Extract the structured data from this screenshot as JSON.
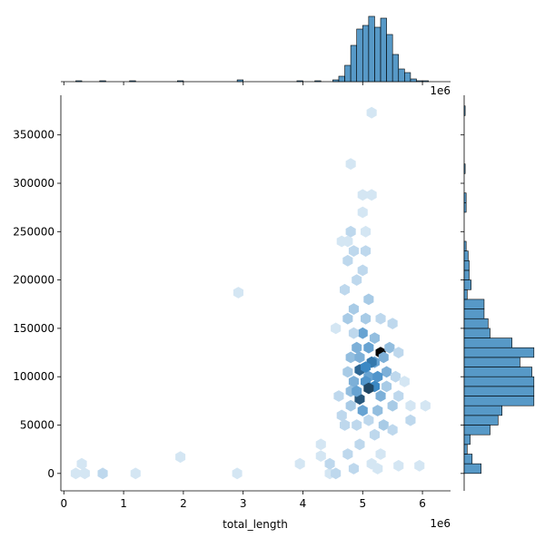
{
  "chart_data": {
    "type": "hexbin-joint",
    "x_label": "total_length",
    "x_offset_label": "1e6",
    "xlim": [
      -50000,
      6470000
    ],
    "ylim": [
      -18000,
      391000
    ],
    "xticks": [
      {
        "value": 0,
        "label": "0"
      },
      {
        "value": 1000000,
        "label": "1"
      },
      {
        "value": 2000000,
        "label": "2"
      },
      {
        "value": 3000000,
        "label": "3"
      },
      {
        "value": 4000000,
        "label": "4"
      },
      {
        "value": 5000000,
        "label": "5"
      },
      {
        "value": 6000000,
        "label": "6"
      }
    ],
    "yticks": [
      0,
      50000,
      100000,
      150000,
      200000,
      250000,
      300000,
      350000
    ],
    "colormap": [
      "#eaf3fa",
      "#3b88c4",
      "#050505"
    ],
    "hist_color": "#1f77b4",
    "hexbins": {
      "x": [
        200000,
        300000,
        350000,
        650000,
        1200000,
        1950000,
        2900000,
        2920000,
        3950000,
        4300000,
        4300000,
        4450000,
        4450000,
        4550000,
        5150000,
        4800000,
        5000000,
        5150000,
        5000000,
        5050000,
        4800000,
        4850000,
        4750000,
        4650000,
        4750000,
        5050000,
        5000000,
        4900000,
        4700000,
        4850000,
        5100000,
        5050000,
        4750000,
        5300000,
        5500000,
        5200000,
        5000000,
        4900000,
        5100000,
        4800000,
        5300000,
        5200000,
        4950000,
        5100000,
        5400000,
        4750000,
        4850000,
        5050000,
        5200000,
        4950000,
        5100000,
        5300000,
        4800000,
        5000000,
        5250000,
        4800000,
        4600000,
        4650000,
        5500000,
        5450000,
        5350000,
        5600000,
        5550000,
        5400000,
        5700000,
        5600000,
        5800000,
        6050000,
        5350000,
        5800000,
        5100000,
        4900000,
        4700000,
        5500000,
        4950000,
        5200000,
        5300000,
        4750000,
        4850000,
        5250000,
        5600000,
        5950000,
        5150000,
        4550000,
        4850000,
        5250000,
        5150000,
        4950000,
        5050000,
        4900000
      ],
      "y": [
        0,
        10000,
        0,
        0,
        0,
        17000,
        0,
        187000,
        10000,
        18000,
        30000,
        0,
        10000,
        0,
        373000,
        320000,
        288000,
        288000,
        270000,
        250000,
        250000,
        230000,
        240000,
        240000,
        220000,
        230000,
        210000,
        200000,
        190000,
        170000,
        180000,
        160000,
        160000,
        160000,
        155000,
        140000,
        145000,
        130000,
        130000,
        120000,
        125000,
        115000,
        107000,
        100000,
        105000,
        105000,
        95000,
        95000,
        90000,
        77000,
        88000,
        80000,
        85000,
        65000,
        65000,
        70000,
        80000,
        60000,
        70000,
        130000,
        120000,
        125000,
        100000,
        90000,
        95000,
        80000,
        70000,
        70000,
        50000,
        55000,
        55000,
        50000,
        50000,
        45000,
        30000,
        40000,
        20000,
        20000,
        5000,
        5000,
        8000,
        8000,
        10000,
        150000,
        145000,
        100000,
        115000,
        120000,
        110000,
        85000
      ],
      "counts": [
        1,
        1,
        1,
        2,
        1,
        1,
        1,
        1,
        1,
        1,
        1,
        1,
        2,
        2,
        1,
        1,
        1,
        1,
        1,
        1,
        2,
        2,
        1,
        1,
        2,
        2,
        2,
        2,
        2,
        3,
        3,
        3,
        3,
        2,
        2,
        4,
        6,
        5,
        6,
        4,
        16,
        6,
        10,
        6,
        5,
        3,
        5,
        7,
        8,
        11,
        12,
        5,
        4,
        6,
        4,
        3,
        2,
        2,
        3,
        4,
        5,
        2,
        2,
        3,
        1,
        2,
        1,
        1,
        3,
        2,
        2,
        2,
        2,
        2,
        2,
        2,
        1,
        2,
        2,
        1,
        1,
        1,
        1,
        1,
        2,
        7,
        9,
        5,
        8,
        6
      ]
    },
    "top_hist": {
      "bins": [
        200000,
        300000,
        400000,
        500000,
        600000,
        700000,
        800000,
        900000,
        1000000,
        1100000,
        1200000,
        1300000,
        1400000,
        1500000,
        1600000,
        1700000,
        1800000,
        1900000,
        2000000,
        2100000,
        2200000,
        2300000,
        2400000,
        2500000,
        2600000,
        2700000,
        2800000,
        2900000,
        3000000,
        3100000,
        3200000,
        3300000,
        3400000,
        3500000,
        3600000,
        3700000,
        3800000,
        3900000,
        4000000,
        4100000,
        4200000,
        4300000,
        4400000,
        4500000,
        4600000,
        4700000,
        4800000,
        4900000,
        5000000,
        5100000,
        5200000,
        5300000,
        5400000,
        5500000,
        5600000,
        5700000,
        5800000,
        5900000,
        6000000,
        6100000,
        6200000
      ],
      "counts": [
        1,
        0,
        0,
        0,
        1,
        0,
        0,
        0,
        0,
        1,
        0,
        0,
        0,
        0,
        0,
        0,
        0,
        1,
        0,
        0,
        0,
        0,
        0,
        0,
        0,
        0,
        0,
        2,
        0,
        0,
        0,
        0,
        0,
        0,
        0,
        0,
        0,
        1,
        0,
        0,
        1,
        0,
        0,
        2,
        6,
        18,
        40,
        58,
        62,
        72,
        60,
        70,
        52,
        30,
        14,
        10,
        3,
        1,
        1,
        0
      ],
      "countlim": [
        0,
        75
      ]
    },
    "right_hist": {
      "bins": [
        0,
        10000,
        20000,
        30000,
        40000,
        50000,
        60000,
        70000,
        80000,
        90000,
        100000,
        110000,
        120000,
        130000,
        140000,
        150000,
        160000,
        170000,
        180000,
        190000,
        200000,
        210000,
        220000,
        230000,
        240000,
        250000,
        260000,
        270000,
        280000,
        290000,
        300000,
        310000,
        320000,
        330000,
        340000,
        350000,
        360000,
        370000,
        380000
      ],
      "counts": [
        17,
        8,
        3,
        6,
        26,
        34,
        38,
        70,
        70,
        70,
        68,
        56,
        70,
        48,
        26,
        24,
        20,
        20,
        3,
        7,
        5,
        5,
        4,
        2,
        0,
        0,
        0,
        2,
        2,
        0,
        0,
        1,
        0,
        0,
        0,
        0,
        0,
        1
      ],
      "countlim": [
        0,
        72
      ]
    }
  }
}
